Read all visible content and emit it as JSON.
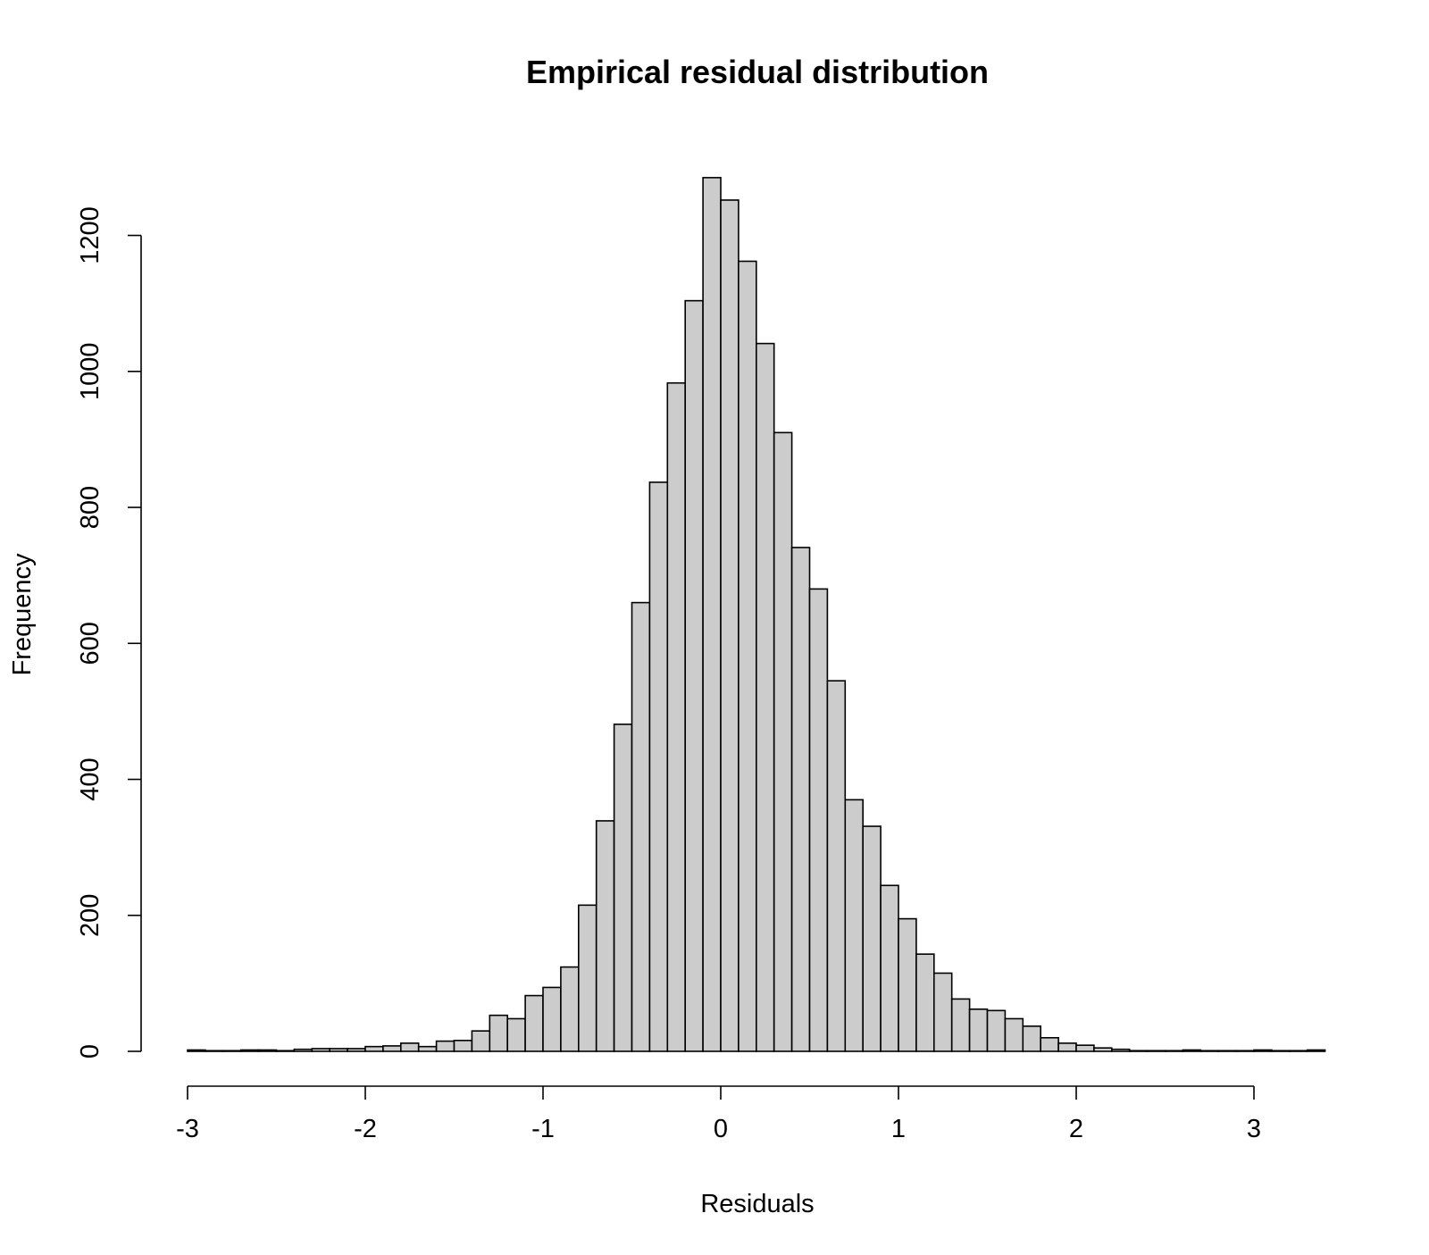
{
  "chart_data": {
    "type": "bar",
    "title": "Empirical residual distribution",
    "xlabel": "Residuals",
    "ylabel": "Frequency",
    "xlim": [
      -3,
      3.4
    ],
    "ylim": [
      0,
      1300
    ],
    "xticks": [
      -3,
      -2,
      -1,
      0,
      1,
      2,
      3
    ],
    "yticks": [
      0,
      200,
      400,
      600,
      800,
      1000,
      1200
    ],
    "bin_start": -3.0,
    "bin_width": 0.1,
    "values": [
      2,
      1,
      1,
      2,
      2,
      1,
      3,
      4,
      4,
      4,
      7,
      8,
      12,
      7,
      15,
      16,
      30,
      53,
      48,
      82,
      94,
      124,
      215,
      339,
      481,
      660,
      837,
      983,
      1104,
      1285,
      1252,
      1162,
      1041,
      910,
      741,
      680,
      545,
      370,
      331,
      244,
      195,
      143,
      115,
      77,
      62,
      60,
      48,
      37,
      20,
      12,
      9,
      5,
      3,
      1,
      1,
      1,
      2,
      1,
      1,
      1,
      2,
      1,
      1,
      2
    ],
    "fill_color": "#cccccc",
    "grid": false,
    "legend": "none"
  }
}
